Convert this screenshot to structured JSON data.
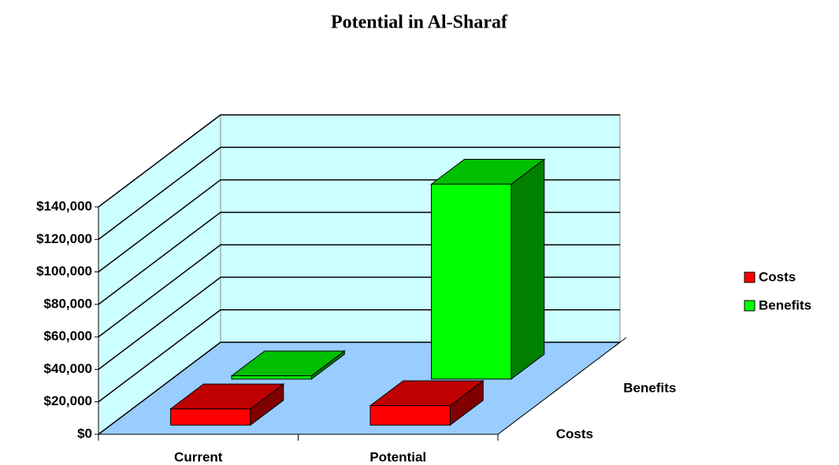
{
  "chart_data": {
    "type": "bar3d",
    "title": "Potential in Al-Sharaf",
    "categories": [
      "Current",
      "Potential"
    ],
    "series": [
      {
        "name": "Costs",
        "color": "#ff0000",
        "values": [
          10000,
          12000
        ]
      },
      {
        "name": "Benefits",
        "color": "#00ff00",
        "values": [
          2000,
          120000
        ]
      }
    ],
    "ylim": [
      0,
      140000
    ],
    "yticks": [
      {
        "value": 0,
        "label": "$0"
      },
      {
        "value": 20000,
        "label": "$20,000"
      },
      {
        "value": 40000,
        "label": "$40,000"
      },
      {
        "value": 60000,
        "label": "$60,000"
      },
      {
        "value": 80000,
        "label": "$80,000"
      },
      {
        "value": 100000,
        "label": "$100,000"
      },
      {
        "value": 120000,
        "label": "$120,000"
      },
      {
        "value": 140000,
        "label": "$140,000"
      }
    ],
    "grid": true,
    "legend": "right"
  }
}
